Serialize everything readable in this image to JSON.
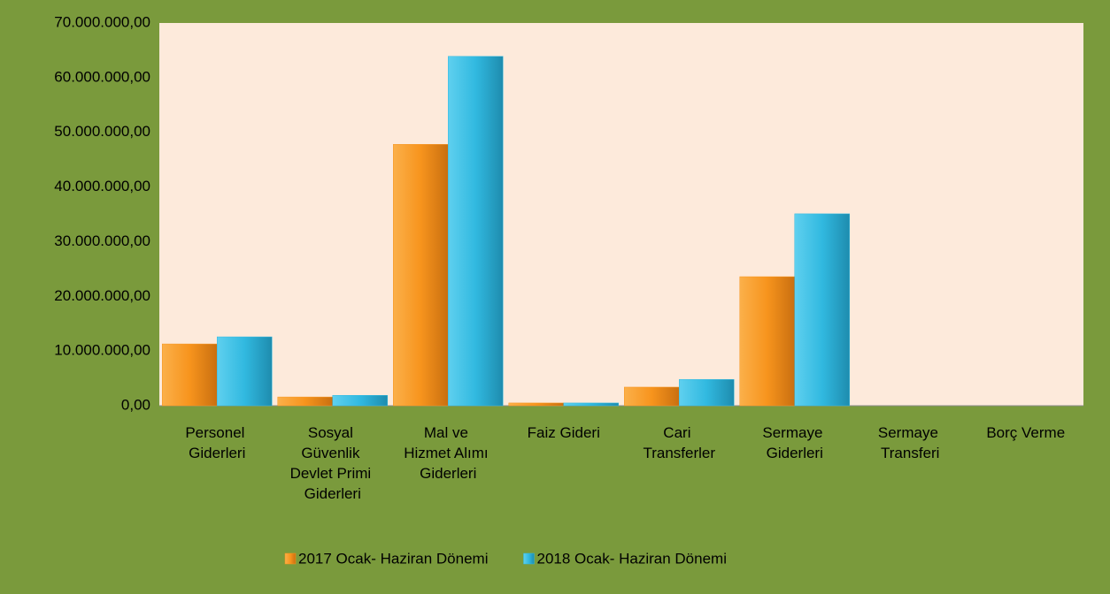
{
  "chart_data": {
    "type": "bar",
    "categories": [
      "Personel Giderleri",
      "Sosyal Güvenlik Devlet Primi Giderleri",
      "Mal ve Hizmet Alımı Giderleri",
      "Faiz Gideri",
      "Cari Transferler",
      "Sermaye Giderleri",
      "Sermaye Transferi",
      "Borç Verme"
    ],
    "series": [
      {
        "name": "2017 Ocak- Haziran Dönemi",
        "color": "#f7941d",
        "values": [
          11300000,
          1600000,
          47800000,
          500000,
          3400000,
          23600000,
          0,
          0
        ]
      },
      {
        "name": "2018 Ocak- Haziran Dönemi",
        "color": "#31b9e0",
        "values": [
          12600000,
          1900000,
          63900000,
          500000,
          4800000,
          35100000,
          0,
          0
        ]
      }
    ],
    "ylim": [
      0,
      70000000
    ],
    "yticks": [
      {
        "value": 0,
        "label": "0,00"
      },
      {
        "value": 10000000,
        "label": "10.000.000,00"
      },
      {
        "value": 20000000,
        "label": "20.000.000,00"
      },
      {
        "value": 30000000,
        "label": "30.000.000,00"
      },
      {
        "value": 40000000,
        "label": "40.000.000,00"
      },
      {
        "value": 50000000,
        "label": "50.000.000,00"
      },
      {
        "value": 60000000,
        "label": "60.000.000,00"
      },
      {
        "value": 70000000,
        "label": "70.000.000,00"
      }
    ],
    "legend": "bottom"
  }
}
